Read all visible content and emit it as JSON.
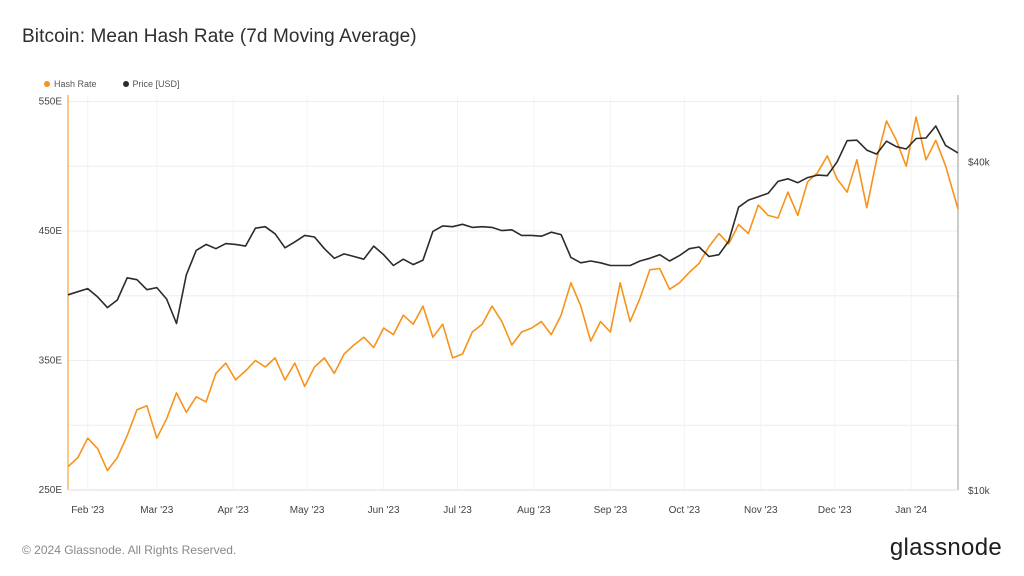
{
  "title": "Bitcoin: Mean Hash Rate (7d Moving Average)",
  "footer": {
    "copyright": "© 2024 Glassnode. All Rights Reserved.",
    "brand": "glassnode"
  },
  "colors": {
    "hash_rate": "#f7931a",
    "price": "#2b2b2b",
    "grid": "#eeeeee"
  },
  "chart_data": {
    "type": "line",
    "title": "Bitcoin: Mean Hash Rate (7d Moving Average)",
    "legend": {
      "placement": "top-left",
      "entries": [
        "Hash Rate",
        "Price [USD]"
      ]
    },
    "grid": true,
    "x_ticks": [
      "Feb '23",
      "Mar '23",
      "Apr '23",
      "May '23",
      "Jun '23",
      "Jul '23",
      "Aug '23",
      "Sep '23",
      "Oct '23",
      "Nov '23",
      "Dec '23",
      "Jan '24"
    ],
    "x_range": [
      "2023-01-24",
      "2024-01-20"
    ],
    "y_left": {
      "ticks": [
        250,
        350,
        450,
        550
      ],
      "tick_labels": [
        "250E",
        "350E",
        "450E",
        "550E"
      ],
      "range": [
        250,
        555
      ]
    },
    "y_right": {
      "scale": "log",
      "ticks": [
        10000,
        40000
      ],
      "tick_labels": [
        "$10k",
        "$40k"
      ],
      "range": [
        10000,
        53000
      ]
    },
    "series": [
      {
        "name": "Hash Rate",
        "axis": "left",
        "x": [
          "2023-01-24",
          "2023-01-28",
          "2023-02-01",
          "2023-02-05",
          "2023-02-09",
          "2023-02-13",
          "2023-02-17",
          "2023-02-21",
          "2023-02-25",
          "2023-03-01",
          "2023-03-05",
          "2023-03-09",
          "2023-03-13",
          "2023-03-17",
          "2023-03-21",
          "2023-03-25",
          "2023-03-29",
          "2023-04-02",
          "2023-04-06",
          "2023-04-10",
          "2023-04-14",
          "2023-04-18",
          "2023-04-22",
          "2023-04-26",
          "2023-04-30",
          "2023-05-04",
          "2023-05-08",
          "2023-05-12",
          "2023-05-16",
          "2023-05-20",
          "2023-05-24",
          "2023-05-28",
          "2023-06-01",
          "2023-06-05",
          "2023-06-09",
          "2023-06-13",
          "2023-06-17",
          "2023-06-21",
          "2023-06-25",
          "2023-06-29",
          "2023-07-03",
          "2023-07-07",
          "2023-07-11",
          "2023-07-15",
          "2023-07-19",
          "2023-07-23",
          "2023-07-27",
          "2023-07-31",
          "2023-08-04",
          "2023-08-08",
          "2023-08-12",
          "2023-08-16",
          "2023-08-20",
          "2023-08-24",
          "2023-08-28",
          "2023-09-01",
          "2023-09-05",
          "2023-09-09",
          "2023-09-13",
          "2023-09-17",
          "2023-09-21",
          "2023-09-25",
          "2023-09-29",
          "2023-10-03",
          "2023-10-07",
          "2023-10-11",
          "2023-10-15",
          "2023-10-19",
          "2023-10-23",
          "2023-10-27",
          "2023-10-31",
          "2023-11-04",
          "2023-11-08",
          "2023-11-12",
          "2023-11-16",
          "2023-11-20",
          "2023-11-24",
          "2023-11-28",
          "2023-12-02",
          "2023-12-06",
          "2023-12-10",
          "2023-12-14",
          "2023-12-18",
          "2023-12-22",
          "2023-12-26",
          "2023-12-30",
          "2024-01-03",
          "2024-01-07",
          "2024-01-11",
          "2024-01-15",
          "2024-01-20"
        ],
        "values": [
          268,
          275,
          290,
          282,
          265,
          275,
          292,
          312,
          315,
          290,
          305,
          325,
          310,
          322,
          318,
          340,
          348,
          335,
          342,
          350,
          345,
          352,
          335,
          348,
          330,
          345,
          352,
          340,
          355,
          362,
          368,
          360,
          375,
          370,
          385,
          378,
          392,
          368,
          378,
          352,
          355,
          372,
          378,
          392,
          380,
          362,
          372,
          375,
          380,
          370,
          385,
          410,
          392,
          365,
          380,
          372,
          410,
          380,
          398,
          420,
          421,
          405,
          410,
          418,
          425,
          438,
          448,
          440,
          455,
          448,
          470,
          462,
          460,
          480,
          462,
          488,
          495,
          508,
          490,
          480,
          505,
          468,
          505,
          535,
          520,
          500,
          538,
          505,
          520,
          500,
          467
        ]
      },
      {
        "name": "Price [USD]",
        "axis": "right",
        "x": [
          "2023-01-24",
          "2023-01-28",
          "2023-02-01",
          "2023-02-05",
          "2023-02-09",
          "2023-02-13",
          "2023-02-17",
          "2023-02-21",
          "2023-02-25",
          "2023-03-01",
          "2023-03-05",
          "2023-03-09",
          "2023-03-13",
          "2023-03-17",
          "2023-03-21",
          "2023-03-25",
          "2023-03-29",
          "2023-04-02",
          "2023-04-06",
          "2023-04-10",
          "2023-04-14",
          "2023-04-18",
          "2023-04-22",
          "2023-04-26",
          "2023-04-30",
          "2023-05-04",
          "2023-05-08",
          "2023-05-12",
          "2023-05-16",
          "2023-05-20",
          "2023-05-24",
          "2023-05-28",
          "2023-06-01",
          "2023-06-05",
          "2023-06-09",
          "2023-06-13",
          "2023-06-17",
          "2023-06-21",
          "2023-06-25",
          "2023-06-29",
          "2023-07-03",
          "2023-07-07",
          "2023-07-11",
          "2023-07-15",
          "2023-07-19",
          "2023-07-23",
          "2023-07-27",
          "2023-07-31",
          "2023-08-04",
          "2023-08-08",
          "2023-08-12",
          "2023-08-16",
          "2023-08-20",
          "2023-08-24",
          "2023-08-28",
          "2023-09-01",
          "2023-09-05",
          "2023-09-09",
          "2023-09-13",
          "2023-09-17",
          "2023-09-21",
          "2023-09-25",
          "2023-09-29",
          "2023-10-03",
          "2023-10-07",
          "2023-10-11",
          "2023-10-15",
          "2023-10-19",
          "2023-10-23",
          "2023-10-27",
          "2023-10-31",
          "2023-11-04",
          "2023-11-08",
          "2023-11-12",
          "2023-11-16",
          "2023-11-20",
          "2023-11-24",
          "2023-11-28",
          "2023-12-02",
          "2023-12-06",
          "2023-12-10",
          "2023-12-14",
          "2023-12-18",
          "2023-12-22",
          "2023-12-26",
          "2023-12-30",
          "2024-01-03",
          "2024-01-07",
          "2024-01-11",
          "2024-01-15",
          "2024-01-20"
        ],
        "values": [
          22800,
          23100,
          23400,
          22600,
          21600,
          22300,
          24500,
          24300,
          23300,
          23500,
          22400,
          20200,
          24800,
          27500,
          28200,
          27700,
          28300,
          28200,
          28000,
          30200,
          30400,
          29500,
          27800,
          28500,
          29300,
          29100,
          27700,
          26600,
          27100,
          26800,
          26500,
          28000,
          27000,
          25800,
          26500,
          25900,
          26400,
          29800,
          30500,
          30400,
          30700,
          30300,
          30400,
          30300,
          29900,
          30000,
          29300,
          29300,
          29200,
          29700,
          29400,
          26700,
          26100,
          26300,
          26100,
          25800,
          25800,
          25800,
          26300,
          26600,
          27000,
          26300,
          26900,
          27700,
          27900,
          26800,
          27000,
          28600,
          33000,
          34000,
          34500,
          35000,
          36800,
          37200,
          36600,
          37400,
          37800,
          37700,
          40000,
          43700,
          43800,
          42000,
          41300,
          43600,
          42600,
          42200,
          44100,
          44200,
          46500,
          42800,
          41500
        ]
      }
    ]
  }
}
